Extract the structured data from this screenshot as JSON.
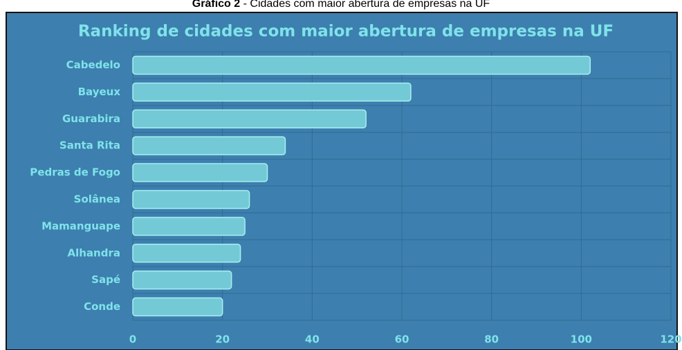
{
  "caption": {
    "label": "Gráfico 2",
    "text": "- Cidades com maior abertura de empresas na UF"
  },
  "chart_data": {
    "type": "bar",
    "orientation": "horizontal",
    "title": "Ranking de cidades com maior abertura de empresas na UF",
    "categories": [
      "Cabedelo",
      "Bayeux",
      "Guarabira",
      "Santa Rita",
      "Pedras de Fogo",
      "Solânea",
      "Mamanguape",
      "Alhandra",
      "Sapé",
      "Conde"
    ],
    "values": [
      102,
      62,
      52,
      34,
      30,
      26,
      25,
      24,
      22,
      20
    ],
    "color": "#76cfd8",
    "xlim": [
      0,
      120
    ],
    "xticks": [
      0,
      20,
      40,
      60,
      80,
      100,
      120
    ],
    "grid": true
  }
}
